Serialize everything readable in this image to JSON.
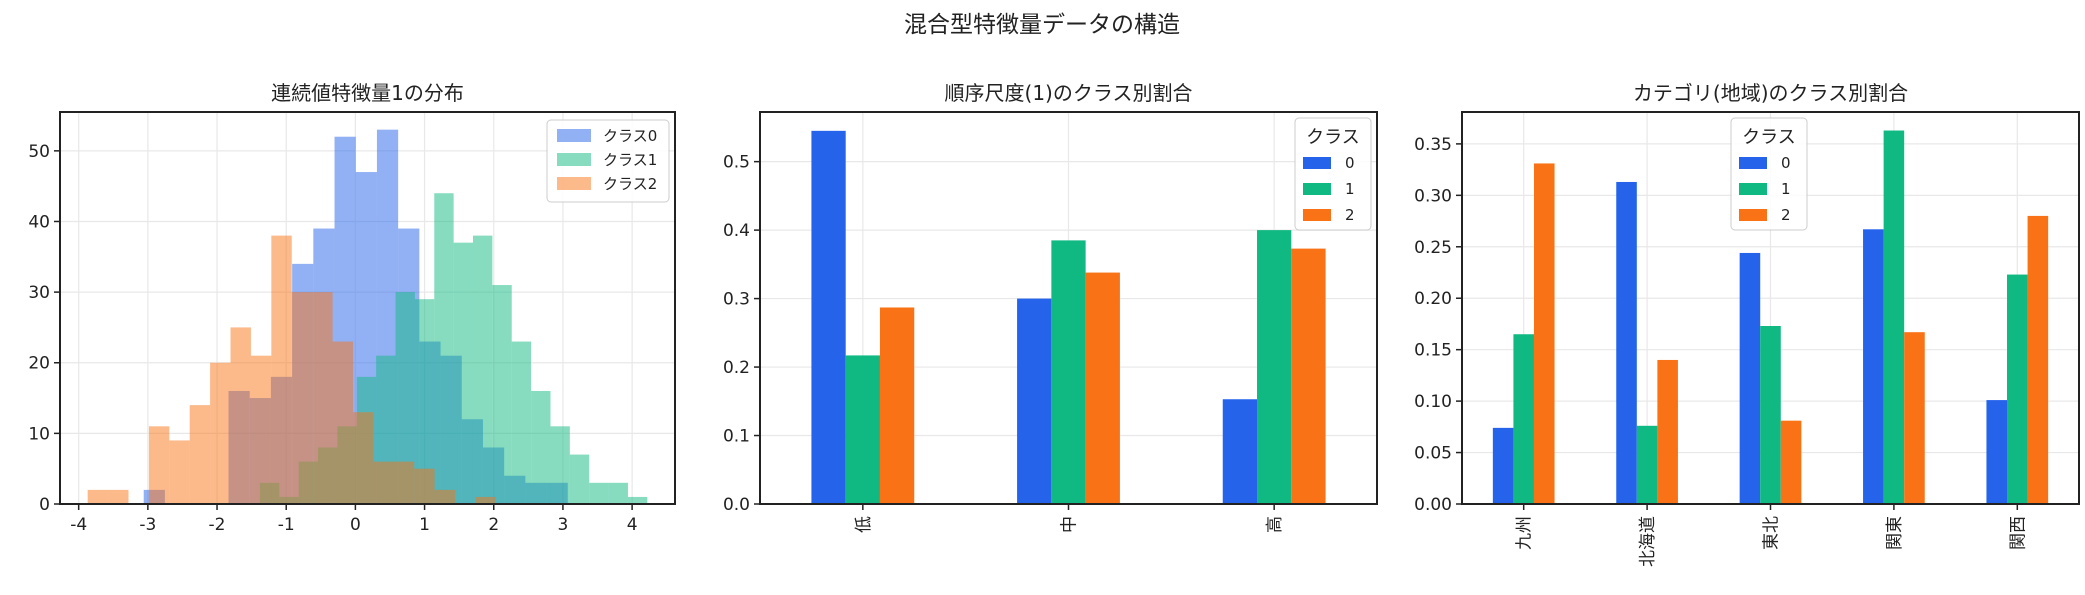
{
  "figure": {
    "suptitle": "混合型特徴量データの構造"
  },
  "colors": {
    "class0": "#2563eb",
    "class1": "#10b981",
    "class2": "#f97316",
    "grid": "#e8e8e8",
    "axis": "#222222"
  },
  "chart_data": [
    {
      "type": "histogram",
      "title": "連続値特徴量1の分布",
      "xlim": [
        -4.27,
        4.62
      ],
      "ylim": [
        0,
        55.5
      ],
      "xticks": [
        "-4",
        "-3",
        "-2",
        "-1",
        "0",
        "1",
        "2",
        "3",
        "4"
      ],
      "xtick_values": [
        -4,
        -3,
        -2,
        -1,
        0,
        1,
        2,
        3,
        4
      ],
      "yticks": [
        "0",
        "10",
        "20",
        "30",
        "40",
        "50"
      ],
      "ytick_values": [
        0,
        10,
        20,
        30,
        40,
        50
      ],
      "grid": true,
      "alpha": 0.5,
      "legend_placement": "top-right",
      "series": [
        {
          "name": "クラス0",
          "color": "#2563eb",
          "range": [
            -3.06,
            3.07
          ],
          "counts": [
            2,
            0,
            0,
            0,
            16,
            15,
            18,
            34,
            39,
            52,
            47,
            53,
            39,
            23,
            21,
            12,
            8,
            4,
            3,
            3
          ]
        },
        {
          "name": "クラス1",
          "color": "#10b981",
          "range": [
            -1.38,
            4.22
          ],
          "counts": [
            3,
            1,
            6,
            8,
            11,
            18,
            21,
            30,
            29,
            44,
            37,
            38,
            31,
            23,
            16,
            11,
            7,
            3,
            3,
            1
          ]
        },
        {
          "name": "クラス2",
          "color": "#f97316",
          "range": [
            -3.87,
            2.03
          ],
          "counts": [
            2,
            2,
            0,
            11,
            9,
            14,
            20,
            25,
            21,
            38,
            30,
            30,
            23,
            13,
            6,
            6,
            5,
            2,
            0,
            1
          ]
        }
      ]
    },
    {
      "type": "bar",
      "title": "順序尺度(1)のクラス別割合",
      "categories": [
        "低",
        "中",
        "高"
      ],
      "ylim": [
        0,
        0.5725
      ],
      "yticks": [
        "0.0",
        "0.1",
        "0.2",
        "0.3",
        "0.4",
        "0.5"
      ],
      "ytick_values": [
        0,
        0.1,
        0.2,
        0.3,
        0.4,
        0.5
      ],
      "grid": true,
      "legend_title": "クラス",
      "legend_placement": "top-right",
      "series": [
        {
          "name": "0",
          "color": "#2563eb",
          "values": [
            0.545,
            0.3,
            0.153
          ]
        },
        {
          "name": "1",
          "color": "#10b981",
          "values": [
            0.217,
            0.385,
            0.4
          ]
        },
        {
          "name": "2",
          "color": "#f97316",
          "values": [
            0.287,
            0.338,
            0.373
          ]
        }
      ]
    },
    {
      "type": "bar",
      "title": "カテゴリ(地域)のクラス別割合",
      "categories": [
        "九州",
        "北海道",
        "東北",
        "関東",
        "関西"
      ],
      "ylim": [
        0,
        0.381
      ],
      "yticks": [
        "0.00",
        "0.05",
        "0.10",
        "0.15",
        "0.20",
        "0.25",
        "0.30",
        "0.35"
      ],
      "ytick_values": [
        0,
        0.05,
        0.1,
        0.15,
        0.2,
        0.25,
        0.3,
        0.35
      ],
      "grid": true,
      "legend_title": "クラス",
      "legend_placement": "top-center",
      "series": [
        {
          "name": "0",
          "color": "#2563eb",
          "values": [
            0.074,
            0.313,
            0.244,
            0.267,
            0.101
          ]
        },
        {
          "name": "1",
          "color": "#10b981",
          "values": [
            0.165,
            0.076,
            0.173,
            0.363,
            0.223
          ]
        },
        {
          "name": "2",
          "color": "#f97316",
          "values": [
            0.331,
            0.14,
            0.081,
            0.167,
            0.28
          ]
        }
      ]
    }
  ]
}
